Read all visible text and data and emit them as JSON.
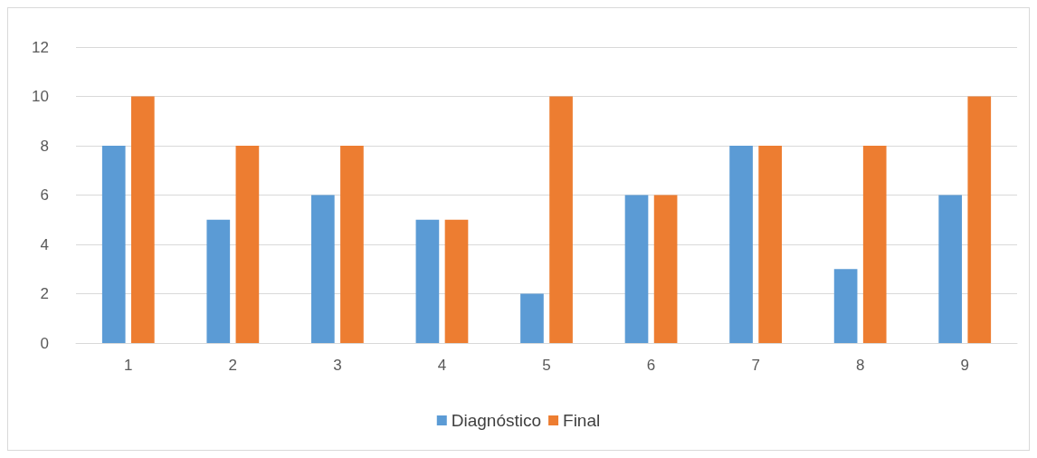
{
  "chart_data": {
    "type": "bar",
    "categories": [
      "1",
      "2",
      "3",
      "4",
      "5",
      "6",
      "7",
      "8",
      "9"
    ],
    "series": [
      {
        "name": "Diagnóstico",
        "color": "#5b9bd5",
        "values": [
          8,
          5,
          6,
          5,
          2,
          6,
          8,
          3,
          6
        ]
      },
      {
        "name": "Final",
        "color": "#ed7d31",
        "values": [
          10,
          8,
          8,
          5,
          10,
          6,
          8,
          8,
          10
        ]
      }
    ],
    "ylim": [
      0,
      12
    ],
    "yticks": [
      0,
      2,
      4,
      6,
      8,
      10,
      12
    ],
    "grid": "y",
    "legend": "bottom"
  }
}
